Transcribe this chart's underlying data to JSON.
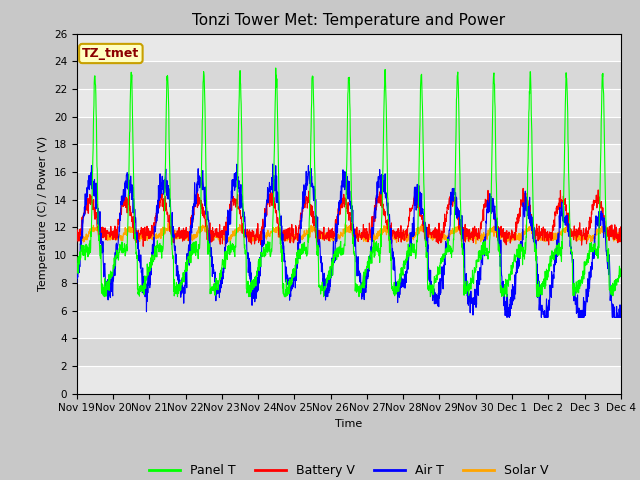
{
  "title": "Tonzi Tower Met: Temperature and Power",
  "xlabel": "Time",
  "ylabel": "Temperature (C) / Power (V)",
  "ylim": [
    0,
    26
  ],
  "yticks": [
    0,
    2,
    4,
    6,
    8,
    10,
    12,
    14,
    16,
    18,
    20,
    22,
    24,
    26
  ],
  "series_colors": {
    "Panel T": "#00ff00",
    "Battery V": "#ff0000",
    "Air T": "#0000ff",
    "Solar V": "#ffa500"
  },
  "annotation_text": "TZ_tmet",
  "annotation_fg": "#8b0000",
  "annotation_bg": "#ffffc0",
  "annotation_border": "#c8a000",
  "title_fontsize": 11,
  "label_fontsize": 8,
  "tick_fontsize": 7.5,
  "legend_fontsize": 9,
  "n_points": 2000,
  "stripe_colors": [
    "#e8e8e8",
    "#d8d8d8"
  ],
  "fig_bg": "#c8c8c8",
  "plot_bg": "#e0e0e0"
}
